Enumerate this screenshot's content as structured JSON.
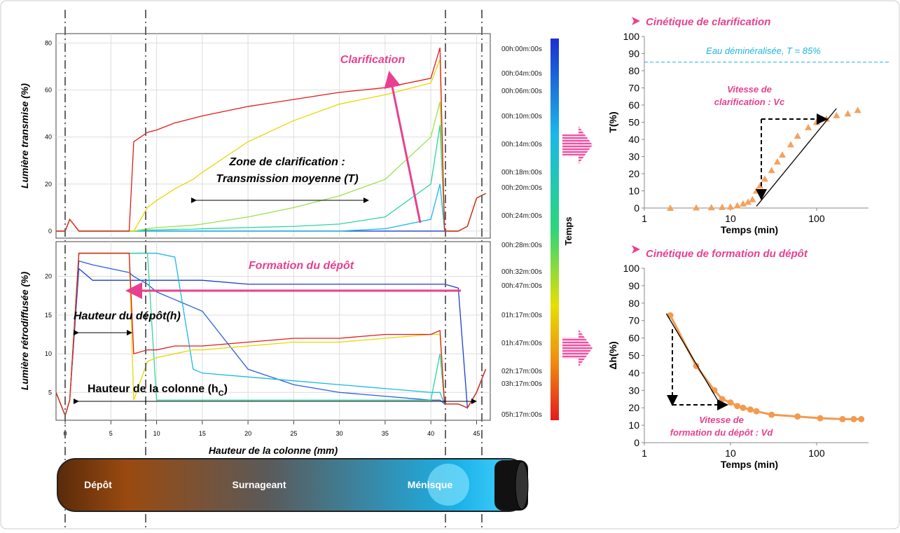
{
  "chart_data": [
    {
      "type": "line",
      "axis_label_y": "Lumière transmise (%)",
      "x": [
        -1,
        0,
        0.5,
        1.5,
        3,
        7,
        7.5,
        9,
        10,
        12,
        14,
        15,
        20,
        25,
        30,
        35,
        40,
        41,
        41.5,
        43,
        44,
        45,
        46
      ],
      "xlim": [
        -1,
        46.5
      ],
      "ylim": [
        -3,
        84
      ],
      "yticks": [
        0,
        20,
        40,
        60,
        80
      ],
      "grid": true,
      "series": [
        {
          "color": "#1a3fd0",
          "values": [
            0,
            0,
            5,
            0,
            0,
            0,
            0,
            0,
            0,
            0,
            0,
            0,
            0,
            0,
            0,
            0,
            0,
            0,
            0,
            0,
            2,
            14,
            16
          ]
        },
        {
          "color": "#1ab8e8",
          "values": [
            0,
            0,
            5,
            0,
            0,
            0,
            0,
            0,
            0,
            0,
            0,
            0,
            0,
            0,
            0,
            1,
            5,
            20,
            0,
            0,
            2,
            14,
            16
          ]
        },
        {
          "color": "#2cd6a0",
          "values": [
            0,
            0,
            5,
            0,
            0,
            0,
            0,
            0.5,
            0.5,
            0.7,
            0.8,
            1,
            1.5,
            2,
            3,
            6,
            20,
            45,
            0,
            0,
            2,
            14,
            16
          ]
        },
        {
          "color": "#9be04a",
          "values": [
            0,
            0,
            5,
            0,
            0,
            0,
            0,
            1,
            1.5,
            2,
            2.5,
            3,
            6,
            10,
            15,
            22,
            40,
            55,
            0,
            0,
            2,
            14,
            16
          ]
        },
        {
          "color": "#e6d800",
          "values": [
            0,
            0,
            5,
            0,
            0,
            0,
            0,
            10,
            13,
            18,
            22,
            25,
            38,
            47,
            54,
            58,
            63,
            73,
            0,
            0,
            2,
            14,
            16
          ]
        },
        {
          "color": "#e31a1c",
          "values": [
            0,
            0,
            5,
            0,
            0,
            0,
            38,
            42,
            43,
            46,
            48,
            49,
            53,
            56,
            59,
            61,
            65,
            78,
            0,
            0,
            2,
            14,
            16
          ]
        }
      ],
      "annotations": [
        "Clarification",
        "Zone de clarification :",
        "Transmission moyenne (T)"
      ],
      "colorbar": {
        "label": "Temps",
        "ticks": [
          "00h:00m:00s",
          "00h:04m:00s",
          "00h:06m:00s",
          "00h:10m:00s",
          "00h:14m:00s",
          "00h:18m:00s",
          "00h:20m:00s",
          "00h:24m:00s",
          "00h:28m:00s",
          "00h:32m:00s",
          "00h:47m:00s",
          "01h:17m:00s",
          "01h:47m:00s",
          "02h:17m:00s",
          "03h:17m:00s",
          "05h:17m:00s"
        ]
      }
    },
    {
      "type": "line",
      "axis_label_y": "Lumière rétrodiffusée (%)",
      "axis_label_x": "Hauteur de la colonne (mm)",
      "x": [
        -1,
        0,
        0.5,
        1.5,
        3,
        7,
        7.5,
        9,
        10,
        12,
        14,
        15,
        20,
        25,
        30,
        35,
        40,
        41,
        41.5,
        43,
        44,
        45,
        46
      ],
      "xlim": [
        -1,
        46.5
      ],
      "ylim": [
        1.4,
        24.5
      ],
      "xticks": [
        0,
        5,
        10,
        15,
        20,
        25,
        30,
        35,
        40,
        45
      ],
      "yticks": [
        5,
        10,
        15,
        20
      ],
      "grid": true,
      "series": [
        {
          "color": "#1a3fd0",
          "values": [
            5,
            2,
            4,
            21,
            19.5,
            19.5,
            19.5,
            19.5,
            19.5,
            19.5,
            19.5,
            19.5,
            19,
            19,
            19,
            19,
            19,
            19,
            19,
            18.5,
            3,
            5,
            8
          ]
        },
        {
          "color": "#2a5ee0",
          "values": [
            5,
            2,
            4,
            22,
            21.5,
            20.5,
            20,
            19,
            18,
            17,
            16,
            15.5,
            8,
            6,
            5,
            4.5,
            4,
            4,
            3.5,
            3.5,
            3,
            5,
            8
          ]
        },
        {
          "color": "#1ab8e8",
          "values": [
            5,
            2,
            4,
            23,
            23,
            23,
            23,
            23,
            23,
            22.5,
            8,
            7.5,
            7,
            6.5,
            6,
            5.5,
            5,
            5,
            3.5,
            3.5,
            3,
            5,
            8
          ]
        },
        {
          "color": "#2cd6a0",
          "values": [
            5,
            2,
            4,
            23,
            23,
            23,
            23,
            23,
            4,
            4,
            4,
            4,
            4,
            4,
            4,
            4,
            4,
            10,
            3.5,
            3.5,
            3,
            5,
            8
          ]
        },
        {
          "color": "#e6d800",
          "values": [
            5,
            2,
            4,
            23,
            23,
            23,
            4,
            9,
            9.5,
            10,
            10.5,
            10.5,
            11,
            11.5,
            11.5,
            12,
            12.5,
            12.5,
            3.5,
            3.5,
            3,
            5,
            8
          ]
        },
        {
          "color": "#e31a1c",
          "values": [
            5,
            2,
            4,
            23,
            23,
            23,
            10,
            10.5,
            10.5,
            11,
            11,
            11,
            11.5,
            12,
            12,
            12.5,
            12.5,
            13,
            3.5,
            3.5,
            3,
            5,
            8
          ]
        }
      ],
      "annotations": [
        "Formation  du dépôt",
        "Hauteur du dépôt(h)"
      ],
      "column_label": {
        "text": "Hauteur de la colonne (h",
        "subscript": "C",
        "suffix": ")"
      }
    },
    {
      "type": "scatter",
      "title": "Cinétique de clarification",
      "axis_label_x": "Temps (min)",
      "axis_label_y": "T(%)",
      "xscale": "log",
      "xlim": [
        1,
        400
      ],
      "ylim": [
        0,
        100
      ],
      "xticks": [
        1,
        10,
        100
      ],
      "yticks": [
        0,
        10,
        20,
        30,
        40,
        50,
        60,
        70,
        80,
        90,
        100
      ],
      "x": [
        2,
        4,
        6,
        8,
        10,
        12,
        14,
        16,
        18,
        20,
        22,
        25,
        30,
        35,
        40,
        50,
        60,
        80,
        100,
        130,
        170,
        230,
        300
      ],
      "series": [
        {
          "color": "#f4a15d",
          "marker": "triangle",
          "values": [
            0,
            0.2,
            0.3,
            0.5,
            0.7,
            1.5,
            2.5,
            3.5,
            5,
            10,
            13,
            17,
            22,
            27,
            31,
            37,
            42,
            47,
            50,
            52,
            54,
            55,
            57
          ]
        }
      ],
      "fit": {
        "x": [
          20,
          170
        ],
        "y": [
          1,
          58
        ]
      },
      "reference": {
        "value": 85,
        "label": "Eau déminéralisée, T = 85%",
        "color": "#1fb4e0"
      },
      "annotations": [
        "Vitesse de",
        "clarification : Vc"
      ]
    },
    {
      "type": "line",
      "title": "Cinétique de formation du dépôt",
      "axis_label_x": "Temps (min)",
      "axis_label_y": "Δh(%)",
      "xscale": "log",
      "xlim": [
        1,
        400
      ],
      "ylim": [
        0,
        100
      ],
      "xticks": [
        1,
        10,
        100
      ],
      "yticks": [
        0,
        10,
        20,
        30,
        40,
        50,
        60,
        70,
        80,
        90,
        100
      ],
      "x": [
        2,
        4,
        6.5,
        8,
        10,
        12,
        14,
        17,
        20,
        30,
        60,
        110,
        200,
        270,
        330
      ],
      "series": [
        {
          "color": "#f39a4d",
          "marker": "circle",
          "values": [
            73,
            44,
            30,
            25,
            23,
            21,
            20,
            19,
            18,
            16,
            15,
            14,
            13.5,
            13.5,
            13.5
          ]
        }
      ],
      "fit": {
        "x": [
          1.8,
          8
        ],
        "y": [
          74,
          20
        ]
      },
      "annotations": [
        "Vitesse de",
        "formation du dépôt : Vd"
      ]
    }
  ],
  "tube_labels": [
    "Dépôt",
    "Surnageant",
    "Ménisque"
  ]
}
